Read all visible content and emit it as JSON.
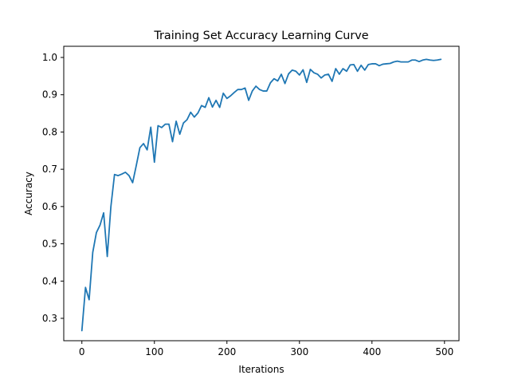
{
  "chart_data": {
    "type": "line",
    "title": "Training Set Accuracy Learning Curve",
    "xlabel": "Iterations",
    "ylabel": "Accuracy",
    "xlim": [
      -25,
      520
    ],
    "ylim": [
      0.24,
      1.03
    ],
    "x_ticks": [
      0,
      100,
      200,
      300,
      400,
      500
    ],
    "y_ticks": [
      0.3,
      0.4,
      0.5,
      0.6,
      0.7,
      0.8,
      0.9,
      1.0
    ],
    "x_tick_labels": [
      "0",
      "100",
      "200",
      "300",
      "400",
      "500"
    ],
    "y_tick_labels": [
      "0.3",
      "0.4",
      "0.5",
      "0.6",
      "0.7",
      "0.8",
      "0.9",
      "1.0"
    ],
    "grid": false,
    "legend": false,
    "series": [
      {
        "color": "#1f77b4",
        "x": [
          0,
          5,
          10,
          15,
          20,
          25,
          30,
          35,
          40,
          45,
          50,
          55,
          60,
          65,
          70,
          75,
          80,
          85,
          90,
          95,
          100,
          105,
          110,
          115,
          120,
          125,
          130,
          135,
          140,
          145,
          150,
          155,
          160,
          165,
          170,
          175,
          180,
          185,
          190,
          195,
          200,
          205,
          210,
          215,
          220,
          225,
          230,
          235,
          240,
          245,
          250,
          255,
          260,
          265,
          270,
          275,
          280,
          285,
          290,
          295,
          300,
          305,
          310,
          315,
          320,
          325,
          330,
          335,
          340,
          345,
          350,
          355,
          360,
          365,
          370,
          375,
          380,
          385,
          390,
          395,
          400,
          405,
          410,
          415,
          420,
          425,
          430,
          435,
          440,
          445,
          450,
          455,
          460,
          465,
          470,
          475,
          480,
          485,
          490,
          495
        ],
        "y": [
          0.267,
          0.383,
          0.35,
          0.477,
          0.53,
          0.55,
          0.583,
          0.466,
          0.6,
          0.686,
          0.683,
          0.687,
          0.692,
          0.683,
          0.664,
          0.71,
          0.758,
          0.769,
          0.752,
          0.813,
          0.719,
          0.817,
          0.812,
          0.821,
          0.821,
          0.774,
          0.829,
          0.794,
          0.824,
          0.833,
          0.853,
          0.84,
          0.851,
          0.871,
          0.866,
          0.892,
          0.867,
          0.885,
          0.866,
          0.904,
          0.89,
          0.897,
          0.906,
          0.914,
          0.914,
          0.918,
          0.885,
          0.91,
          0.923,
          0.914,
          0.91,
          0.91,
          0.932,
          0.943,
          0.937,
          0.955,
          0.93,
          0.956,
          0.966,
          0.963,
          0.953,
          0.967,
          0.933,
          0.968,
          0.959,
          0.955,
          0.945,
          0.953,
          0.955,
          0.936,
          0.97,
          0.955,
          0.97,
          0.963,
          0.98,
          0.981,
          0.963,
          0.979,
          0.966,
          0.981,
          0.983,
          0.983,
          0.978,
          0.982,
          0.983,
          0.984,
          0.988,
          0.99,
          0.988,
          0.988,
          0.988,
          0.993,
          0.993,
          0.989,
          0.993,
          0.995,
          0.993,
          0.992,
          0.993,
          0.995
        ]
      }
    ]
  }
}
